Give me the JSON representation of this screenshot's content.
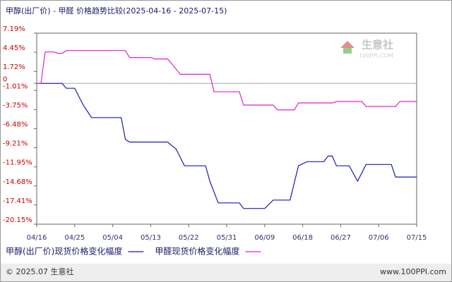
{
  "chart_data": {
    "type": "line",
    "title": "甲醇(出厂价) - 甲醛 价格趋势比较(2025-04-16 - 2025-07-15)",
    "xlim": [
      "04/16",
      "07/15"
    ],
    "xticks": [
      "04/16",
      "04/25",
      "05/04",
      "05/13",
      "05/22",
      "05/31",
      "06/09",
      "06/18",
      "06/27",
      "07/06",
      "07/15"
    ],
    "ylim": [
      -20.15,
      7.19
    ],
    "yticks": [
      {
        "value": 7.19,
        "label": "7.19%"
      },
      {
        "value": 4.45,
        "label": "4.45%"
      },
      {
        "value": 1.72,
        "label": "1.72%"
      },
      0,
      {
        "value": -1.01,
        "label": "-1.01%"
      },
      {
        "value": -3.75,
        "label": "-3.75%"
      },
      {
        "value": -6.48,
        "label": "-6.48%"
      },
      {
        "value": -9.21,
        "label": "-9.21%"
      },
      {
        "value": -11.95,
        "label": "-11.95%"
      },
      {
        "value": -14.68,
        "label": "-14.68%"
      },
      {
        "value": -17.41,
        "label": "-17.41%"
      },
      {
        "value": -20.15,
        "label": "-20.15%"
      }
    ],
    "series": [
      {
        "name": "甲醇(出厂价)现货价格变化幅度",
        "color": "#1a1ab8",
        "x": [
          "04/16",
          "04/22",
          "04/23",
          "04/25",
          "04/27",
          "04/29",
          "05/06",
          "05/07",
          "05/08",
          "05/17",
          "05/19",
          "05/21",
          "05/26",
          "05/27",
          "05/29",
          "06/03",
          "06/04",
          "06/09",
          "06/10",
          "06/11",
          "06/15",
          "06/17",
          "06/19",
          "06/23",
          "06/24",
          "06/25",
          "06/26",
          "06/29",
          "07/01",
          "07/03",
          "07/09",
          "07/10",
          "07/15"
        ],
        "values": [
          0,
          0,
          -0.7,
          -0.7,
          -3.1,
          -4.9,
          -4.9,
          -8.0,
          -8.4,
          -8.4,
          -9.4,
          -11.8,
          -11.8,
          -14.0,
          -17.1,
          -17.1,
          -17.9,
          -17.9,
          -17.3,
          -16.7,
          -16.7,
          -11.8,
          -11.2,
          -11.2,
          -10.4,
          -10.4,
          -11.8,
          -11.8,
          -14.0,
          -11.6,
          -11.6,
          -13.4,
          -13.4
        ]
      },
      {
        "name": "甲醛现货价格变化幅度",
        "color": "#e020d0",
        "x": [
          "04/16",
          "04/17",
          "04/18",
          "04/20",
          "04/21",
          "04/22",
          "04/23",
          "05/07",
          "05/08",
          "05/13",
          "05/14",
          "05/17",
          "05/18",
          "05/20",
          "05/27",
          "05/28",
          "06/03",
          "06/04",
          "06/11",
          "06/12",
          "06/16",
          "06/17",
          "06/25",
          "06/26",
          "07/02",
          "07/03",
          "07/10",
          "07/11",
          "07/15"
        ],
        "values": [
          0,
          0,
          4.5,
          4.5,
          4.3,
          4.3,
          4.7,
          4.7,
          3.7,
          3.7,
          3.5,
          3.5,
          2.8,
          1.3,
          1.3,
          -1.2,
          -1.2,
          -3.1,
          -3.1,
          -3.8,
          -3.8,
          -2.8,
          -2.8,
          -2.6,
          -2.6,
          -3.3,
          -3.3,
          -2.6,
          -2.6
        ]
      }
    ],
    "grid": false,
    "watermark": {
      "brand": "生意社",
      "site": "100PPI.COM"
    },
    "footer": {
      "left": "© 2025.07 生意社",
      "right": "www.100PPI.com"
    }
  }
}
